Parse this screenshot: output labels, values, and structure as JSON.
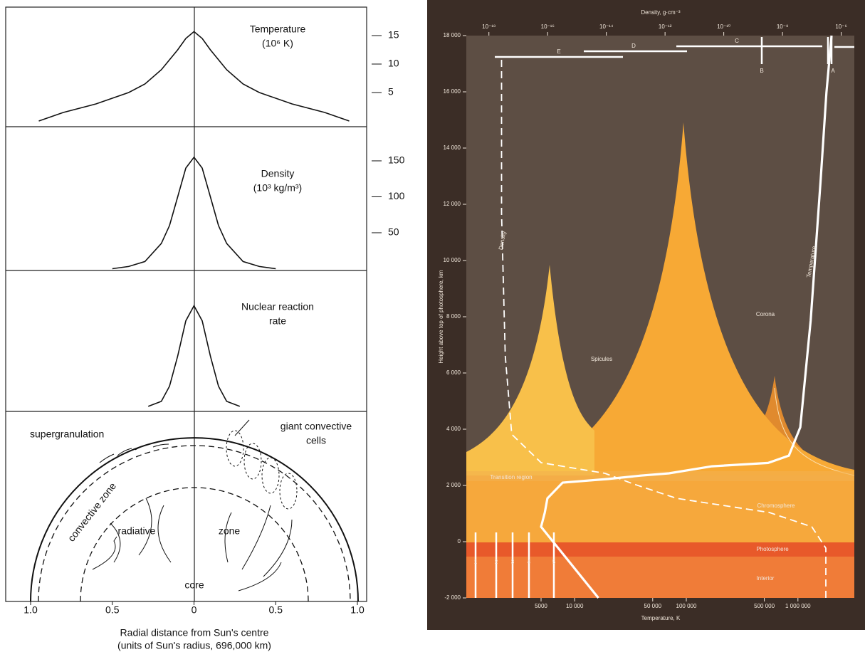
{
  "chart_data": [
    {
      "type": "line",
      "title": [
        "Temperature",
        "(10⁶ K)"
      ],
      "color": "#111111",
      "x": [
        -0.95,
        -0.8,
        -0.6,
        -0.4,
        -0.3,
        -0.2,
        -0.1,
        -0.05,
        0,
        0.05,
        0.1,
        0.2,
        0.3,
        0.4,
        0.6,
        0.8,
        0.95
      ],
      "values": [
        0,
        1.5,
        3,
        5,
        6.5,
        9,
        12.5,
        14.5,
        15.7,
        14.5,
        12.5,
        9,
        6.5,
        5,
        3,
        1.5,
        0
      ],
      "xlim": [
        -1,
        1
      ],
      "ylim": [
        -1,
        20
      ],
      "yticks": [
        5,
        10,
        15
      ]
    },
    {
      "type": "line",
      "title": [
        "Density",
        "(10³ kg/m³)"
      ],
      "color": "#111111",
      "x": [
        -0.5,
        -0.4,
        -0.3,
        -0.2,
        -0.15,
        -0.1,
        -0.05,
        0,
        0.05,
        0.1,
        0.15,
        0.2,
        0.3,
        0.4,
        0.5
      ],
      "values": [
        0,
        3,
        10,
        35,
        60,
        100,
        140,
        155,
        140,
        100,
        60,
        35,
        10,
        3,
        0
      ],
      "xlim": [
        -1,
        1
      ],
      "ylim": [
        -2.5,
        197.5
      ],
      "yticks": [
        50,
        100,
        150
      ]
    },
    {
      "type": "line",
      "title": [
        "Nuclear reaction",
        "rate"
      ],
      "color": "#111111",
      "x": [
        -0.28,
        -0.2,
        -0.15,
        -0.1,
        -0.05,
        0,
        0.05,
        0.1,
        0.15,
        0.2,
        0.28
      ],
      "values": [
        0,
        0.05,
        0.2,
        0.5,
        0.85,
        1,
        0.85,
        0.5,
        0.2,
        0.05,
        0
      ],
      "xlim": [
        -1,
        1
      ],
      "ylim": [
        -0.05,
        1.35
      ],
      "xticks": [
        {
          "value": -1,
          "label": "1.0"
        },
        {
          "value": -0.5,
          "label": "0.5"
        },
        0,
        0.5,
        {
          "value": 1,
          "label": "1.0"
        }
      ],
      "xlabel": [
        "Radial distance from Sun's centre",
        "(units of Sun's radius, 696,000 km)"
      ],
      "diagram": [
        "supergranulation",
        "giant convective",
        "cells",
        "convective zone",
        "radiative",
        "zone",
        "core"
      ]
    },
    {
      "type": "line",
      "xscale": "log",
      "x2scale": "log",
      "xlabel": "Temperature, K",
      "x2label": "Density, g·cm⁻³",
      "ylabel": "Height above top of photosphere, km",
      "xlim": [
        1070,
        3200000
      ],
      "x2lim": [
        1.7e-19,
        2.8e-06
      ],
      "ylim": [
        -2000,
        18000
      ],
      "xticks": [
        5000,
        {
          "value": 10000,
          "label": "10 000"
        },
        {
          "value": 50000,
          "label": "50 000"
        },
        {
          "value": 100000,
          "label": "100 000"
        },
        {
          "value": 500000,
          "label": "500 000"
        },
        {
          "value": 1000000,
          "label": "1 000 000"
        }
      ],
      "x2ticks": [
        {
          "value": 1e-18,
          "label": "10⁻¹⁸"
        },
        {
          "value": 1e-16,
          "label": "10⁻¹⁶"
        },
        {
          "value": 1e-14,
          "label": "10⁻¹⁴"
        },
        {
          "value": 1e-12,
          "label": "10⁻¹²"
        },
        {
          "value": 1e-10,
          "label": "10⁻¹⁰"
        },
        {
          "value": 1e-08,
          "label": "10⁻⁸"
        },
        {
          "value": 1e-06,
          "label": "10⁻⁶"
        }
      ],
      "yticks": [
        {
          "value": -2000,
          "label": "-2 000"
        },
        0,
        {
          "value": 2000,
          "label": "2 000"
        },
        {
          "value": 4000,
          "label": "4 000"
        },
        {
          "value": 6000,
          "label": "6 000"
        },
        {
          "value": 8000,
          "label": "8 000"
        },
        {
          "value": 10000,
          "label": "10 000"
        },
        {
          "value": 12000,
          "label": "12 000"
        },
        {
          "value": 14000,
          "label": "14 000"
        },
        {
          "value": 16000,
          "label": "16 000"
        },
        {
          "value": 18000,
          "label": "18 000"
        }
      ],
      "series": [
        {
          "name": "Temperature",
          "color": "#ffffff",
          "style": "solid",
          "axis": "x",
          "x": [
            16300,
            5000,
            5400,
            5700,
            7800,
            20000,
            39000,
            70000,
            170000,
            540000,
            830000,
            1050000,
            1300000,
            1600000,
            1800000,
            2000000
          ],
          "values": [
            -2000,
            530,
            1030,
            1540,
            2100,
            2230,
            2350,
            2430,
            2680,
            2800,
            3060,
            4070,
            7870,
            12900,
            15970,
            18000
          ]
        },
        {
          "name": "Density",
          "color": "#ffffff",
          "style": "dashed",
          "axis": "x2",
          "x": [
            3e-07,
            3e-07,
            1e-07,
            3.5e-09,
            2.5e-12,
            8.5e-14,
            9e-15,
            6e-17,
            6e-18,
            3.6e-18,
            2.7e-18,
            2.7e-18
          ],
          "values": [
            -2000,
            -230,
            530,
            1040,
            1540,
            2050,
            2430,
            2810,
            3820,
            6610,
            11670,
            17240
          ]
        }
      ],
      "annotations": [
        "Corona",
        "Spicules",
        "Chromosphere",
        "Photosphere",
        "Interior",
        "Transition region",
        "A",
        "B",
        "C",
        "D",
        "E",
        "1",
        "2",
        "3",
        "4",
        "5"
      ]
    }
  ]
}
